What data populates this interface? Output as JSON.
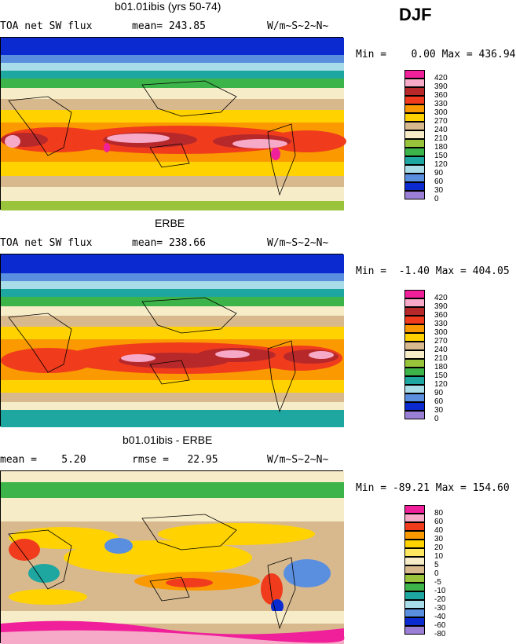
{
  "season": "DJF",
  "panels": [
    {
      "title": "b01.01ibis (yrs 50-74)",
      "left": "TOA net SW flux",
      "stat": "mean= 243.85",
      "units": "W/m~S~2~N~",
      "range": "Min =    0.00 Max = 436.94",
      "levels": [
        "420",
        "390",
        "360",
        "330",
        "300",
        "270",
        "240",
        "210",
        "180",
        "150",
        "120",
        "90",
        "60",
        "30",
        "0"
      ],
      "colors": [
        "#f0209a",
        "#f7aac8",
        "#b7282a",
        "#f03c1d",
        "#fa9a00",
        "#ffd200",
        "#d8b98e",
        "#f7ecc8",
        "#99c33a",
        "#3cb44a",
        "#1ea7a0",
        "#a8dce8",
        "#5a8fe0",
        "#0b2ad0",
        "#9b7fd6"
      ],
      "map_id": "model"
    },
    {
      "title": "ERBE",
      "left": "TOA net SW flux",
      "stat": "mean= 238.66",
      "units": "W/m~S~2~N~",
      "range": "Min =  -1.40 Max = 404.05",
      "levels": [
        "420",
        "390",
        "360",
        "330",
        "300",
        "270",
        "240",
        "210",
        "180",
        "150",
        "120",
        "90",
        "60",
        "30",
        "0"
      ],
      "colors": [
        "#f0209a",
        "#f7aac8",
        "#b7282a",
        "#f03c1d",
        "#fa9a00",
        "#ffd200",
        "#d8b98e",
        "#f7ecc8",
        "#99c33a",
        "#3cb44a",
        "#1ea7a0",
        "#a8dce8",
        "#5a8fe0",
        "#0b2ad0",
        "#9b7fd6"
      ],
      "map_id": "obs"
    },
    {
      "title": "b01.01ibis - ERBE",
      "left": "mean =    5.20",
      "stat": "rmse =   22.95",
      "units": "W/m~S~2~N~",
      "range": "Min = -89.21 Max = 154.60",
      "levels": [
        "80",
        "60",
        "40",
        "30",
        "20",
        "10",
        "5",
        "0",
        "-5",
        "-10",
        "-20",
        "-30",
        "-40",
        "-60",
        "-80"
      ],
      "colors": [
        "#f0209a",
        "#f7aac8",
        "#f03c1d",
        "#fa9a00",
        "#ffd200",
        "#ffe860",
        "#f7ecc8",
        "#d8b98e",
        "#99c33a",
        "#3cb44a",
        "#1ea7a0",
        "#a8dce8",
        "#5a8fe0",
        "#0b2ad0",
        "#9b7fd6"
      ],
      "map_id": "diff"
    }
  ],
  "chart_data": [
    {
      "type": "heatmap",
      "title": "b01.01ibis (yrs 50-74)",
      "variable": "TOA net SW flux",
      "season": "DJF",
      "units": "W/m~S~2~N~",
      "mean": 243.85,
      "min": 0.0,
      "max": 436.94,
      "contour_levels": [
        0,
        30,
        60,
        90,
        120,
        150,
        180,
        210,
        240,
        270,
        300,
        330,
        360,
        390,
        420
      ]
    },
    {
      "type": "heatmap",
      "title": "ERBE",
      "variable": "TOA net SW flux",
      "season": "DJF",
      "units": "W/m~S~2~N~",
      "mean": 238.66,
      "min": -1.4,
      "max": 404.05,
      "contour_levels": [
        0,
        30,
        60,
        90,
        120,
        150,
        180,
        210,
        240,
        270,
        300,
        330,
        360,
        390,
        420
      ]
    },
    {
      "type": "heatmap",
      "title": "b01.01ibis - ERBE",
      "season": "DJF",
      "units": "W/m~S~2~N~",
      "mean": 5.2,
      "rmse": 22.95,
      "min": -89.21,
      "max": 154.6,
      "contour_levels": [
        -80,
        -60,
        -40,
        -30,
        -20,
        -10,
        -5,
        0,
        5,
        10,
        20,
        30,
        40,
        60,
        80
      ]
    }
  ]
}
